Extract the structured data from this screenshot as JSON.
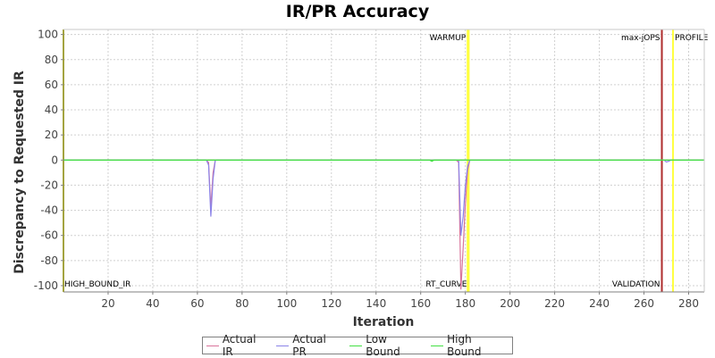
{
  "chart_data": {
    "type": "line",
    "title": "IR/PR Accuracy",
    "xlabel": "Iteration",
    "ylabel": "Discrepancy to Requested IR",
    "xlim": [
      0,
      287
    ],
    "ylim": [
      -105,
      104
    ],
    "xticks": [
      20,
      40,
      60,
      80,
      100,
      120,
      140,
      160,
      180,
      200,
      220,
      240,
      260,
      280
    ],
    "yticks": [
      100,
      80,
      60,
      40,
      20,
      0,
      -20,
      -40,
      -60,
      -80,
      -100
    ],
    "grid": true,
    "legend_position": "bottom",
    "series": [
      {
        "name": "Actual IR",
        "color": "#d9739b",
        "points": [
          [
            0,
            0
          ],
          [
            64,
            0
          ],
          [
            65,
            -2
          ],
          [
            66,
            -38
          ],
          [
            67,
            -10
          ],
          [
            68,
            0
          ],
          [
            176,
            0
          ],
          [
            177,
            -2
          ],
          [
            178,
            -103
          ],
          [
            179,
            -70
          ],
          [
            180,
            -35
          ],
          [
            181,
            -8
          ],
          [
            182,
            0
          ],
          [
            268,
            0
          ],
          [
            287,
            0
          ]
        ]
      },
      {
        "name": "Actual PR",
        "color": "#8b83e8",
        "points": [
          [
            0,
            0
          ],
          [
            64,
            0
          ],
          [
            65,
            -4
          ],
          [
            66,
            -45
          ],
          [
            67,
            -15
          ],
          [
            68,
            0
          ],
          [
            177,
            0
          ],
          [
            178,
            -60
          ],
          [
            179,
            -45
          ],
          [
            180,
            -20
          ],
          [
            181,
            -5
          ],
          [
            182,
            0
          ],
          [
            269,
            0
          ],
          [
            270,
            -1.5
          ],
          [
            271,
            -1
          ],
          [
            272,
            0
          ],
          [
            287,
            0
          ]
        ]
      },
      {
        "name": "Low Bound",
        "color": "#44e044",
        "points": [
          [
            0,
            0
          ],
          [
            164,
            0
          ],
          [
            165,
            -1
          ],
          [
            166,
            0
          ],
          [
            287,
            0
          ]
        ]
      },
      {
        "name": "High Bound",
        "color": "#44e044",
        "points": [
          [
            0,
            0
          ],
          [
            287,
            0
          ]
        ]
      }
    ],
    "zero_line_color": "#c04040",
    "markers": [
      {
        "label": "HIGH_BOUND_IR",
        "x": 0,
        "color": "#c8c800",
        "label_at": "bottom-right"
      },
      {
        "label": "WARMUP",
        "x": 181,
        "color": "#ffff40",
        "label_at": "top-left"
      },
      {
        "label": "RT_CURVE",
        "x": 181.5,
        "color": "#ffff40",
        "label_at": "bottom-left"
      },
      {
        "label": "max-jOPS",
        "x": 268,
        "color": "#b03030",
        "label_at": "top-left"
      },
      {
        "label": "VALIDATION",
        "x": 268,
        "color": "#b03030",
        "label_at": "bottom-left"
      },
      {
        "label": "PROFILE",
        "x": 273,
        "color": "#ffff40",
        "label_at": "top-right"
      }
    ]
  }
}
